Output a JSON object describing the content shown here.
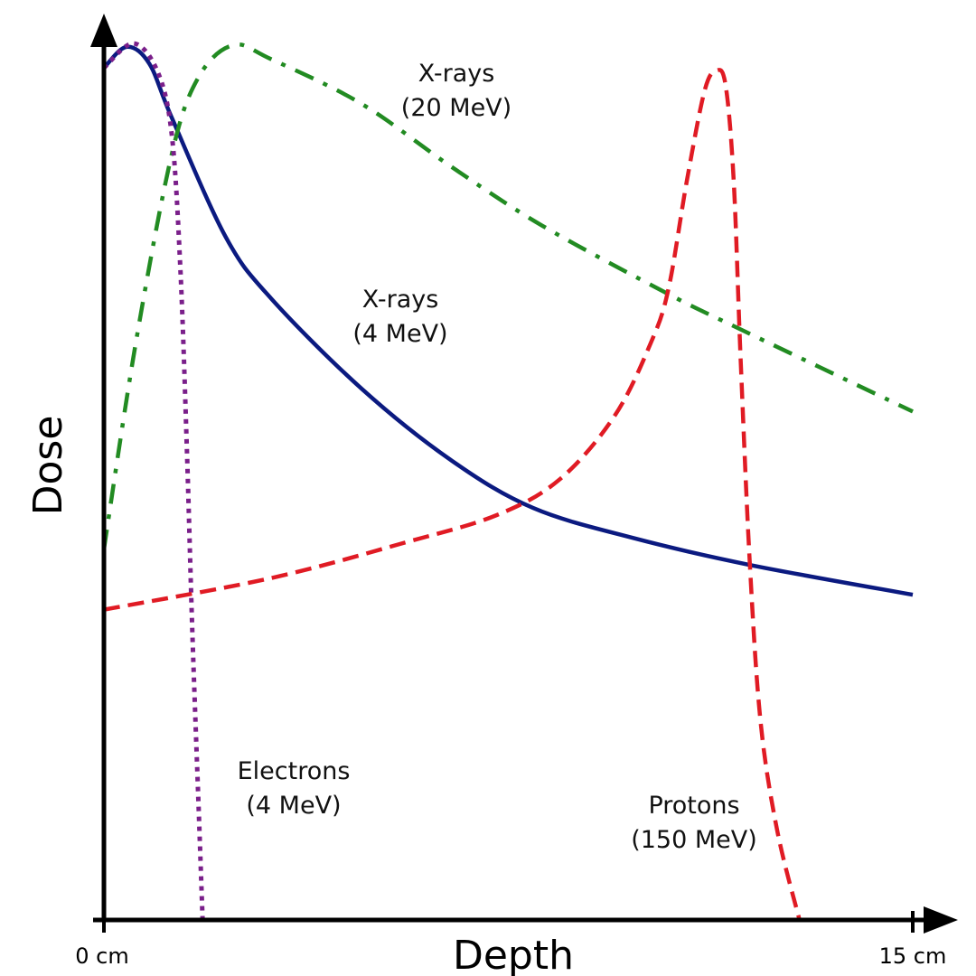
{
  "chart_data": {
    "type": "line",
    "title": "",
    "xlabel": "Depth",
    "ylabel": "Dose",
    "x_unit": "cm",
    "xlim": [
      0,
      15
    ],
    "ylim": [
      0,
      1
    ],
    "grid": false,
    "x_tick_labels": [
      "0 cm",
      "15 cm"
    ],
    "x_ticks": [
      0,
      15
    ],
    "series": [
      {
        "name": "X-rays (4 MeV)",
        "label_lines": [
          "X-rays",
          "(4 MeV)"
        ],
        "color": "#0b1a80",
        "style": "solid",
        "x": [
          0,
          0.42,
          0.84,
          1.26,
          2.26,
          3.1,
          4.78,
          6.45,
          7.96,
          9.8,
          11.98,
          15
        ],
        "y": [
          0.972,
          0.996,
          0.977,
          0.915,
          0.779,
          0.709,
          0.606,
          0.524,
          0.47,
          0.436,
          0.405,
          0.371
        ]
      },
      {
        "name": "X-rays (20 MeV)",
        "label_lines": [
          "X-rays",
          "(20 MeV)"
        ],
        "color": "#228b22",
        "style": "dash-dot",
        "x": [
          0,
          0.59,
          1.26,
          1.76,
          2.4,
          3.1,
          4.78,
          6.45,
          8.13,
          10.47,
          11.73,
          15
        ],
        "y": [
          0.423,
          0.658,
          0.874,
          0.962,
          0.998,
          0.982,
          0.931,
          0.859,
          0.792,
          0.714,
          0.676,
          0.58
        ]
      },
      {
        "name": "Electrons (4 MeV)",
        "label_lines": [
          "Electrons",
          "(4 MeV)"
        ],
        "color": "#7a1f8a",
        "style": "dotted",
        "x": [
          0,
          0.55,
          1.0,
          1.26,
          1.42,
          1.54,
          1.64,
          1.76,
          1.83
        ],
        "y": [
          0.972,
          1.0,
          0.967,
          0.895,
          0.74,
          0.534,
          0.328,
          0.122,
          0.0
        ]
      },
      {
        "name": "Protons (150 MeV)",
        "label_lines": [
          "Protons",
          "(150 MeV)"
        ],
        "color": "#e01b24",
        "style": "dashed",
        "x": [
          0,
          3.1,
          5.61,
          7.29,
          8.46,
          9.47,
          10.14,
          10.47,
          10.81,
          11.14,
          11.36,
          11.53,
          11.68,
          11.81,
          11.98,
          12.18,
          12.49,
          12.9
        ],
        "y": [
          0.354,
          0.39,
          0.431,
          0.462,
          0.503,
          0.575,
          0.658,
          0.72,
          0.843,
          0.946,
          0.969,
          0.952,
          0.843,
          0.637,
          0.405,
          0.225,
          0.101,
          0.0
        ]
      }
    ]
  }
}
